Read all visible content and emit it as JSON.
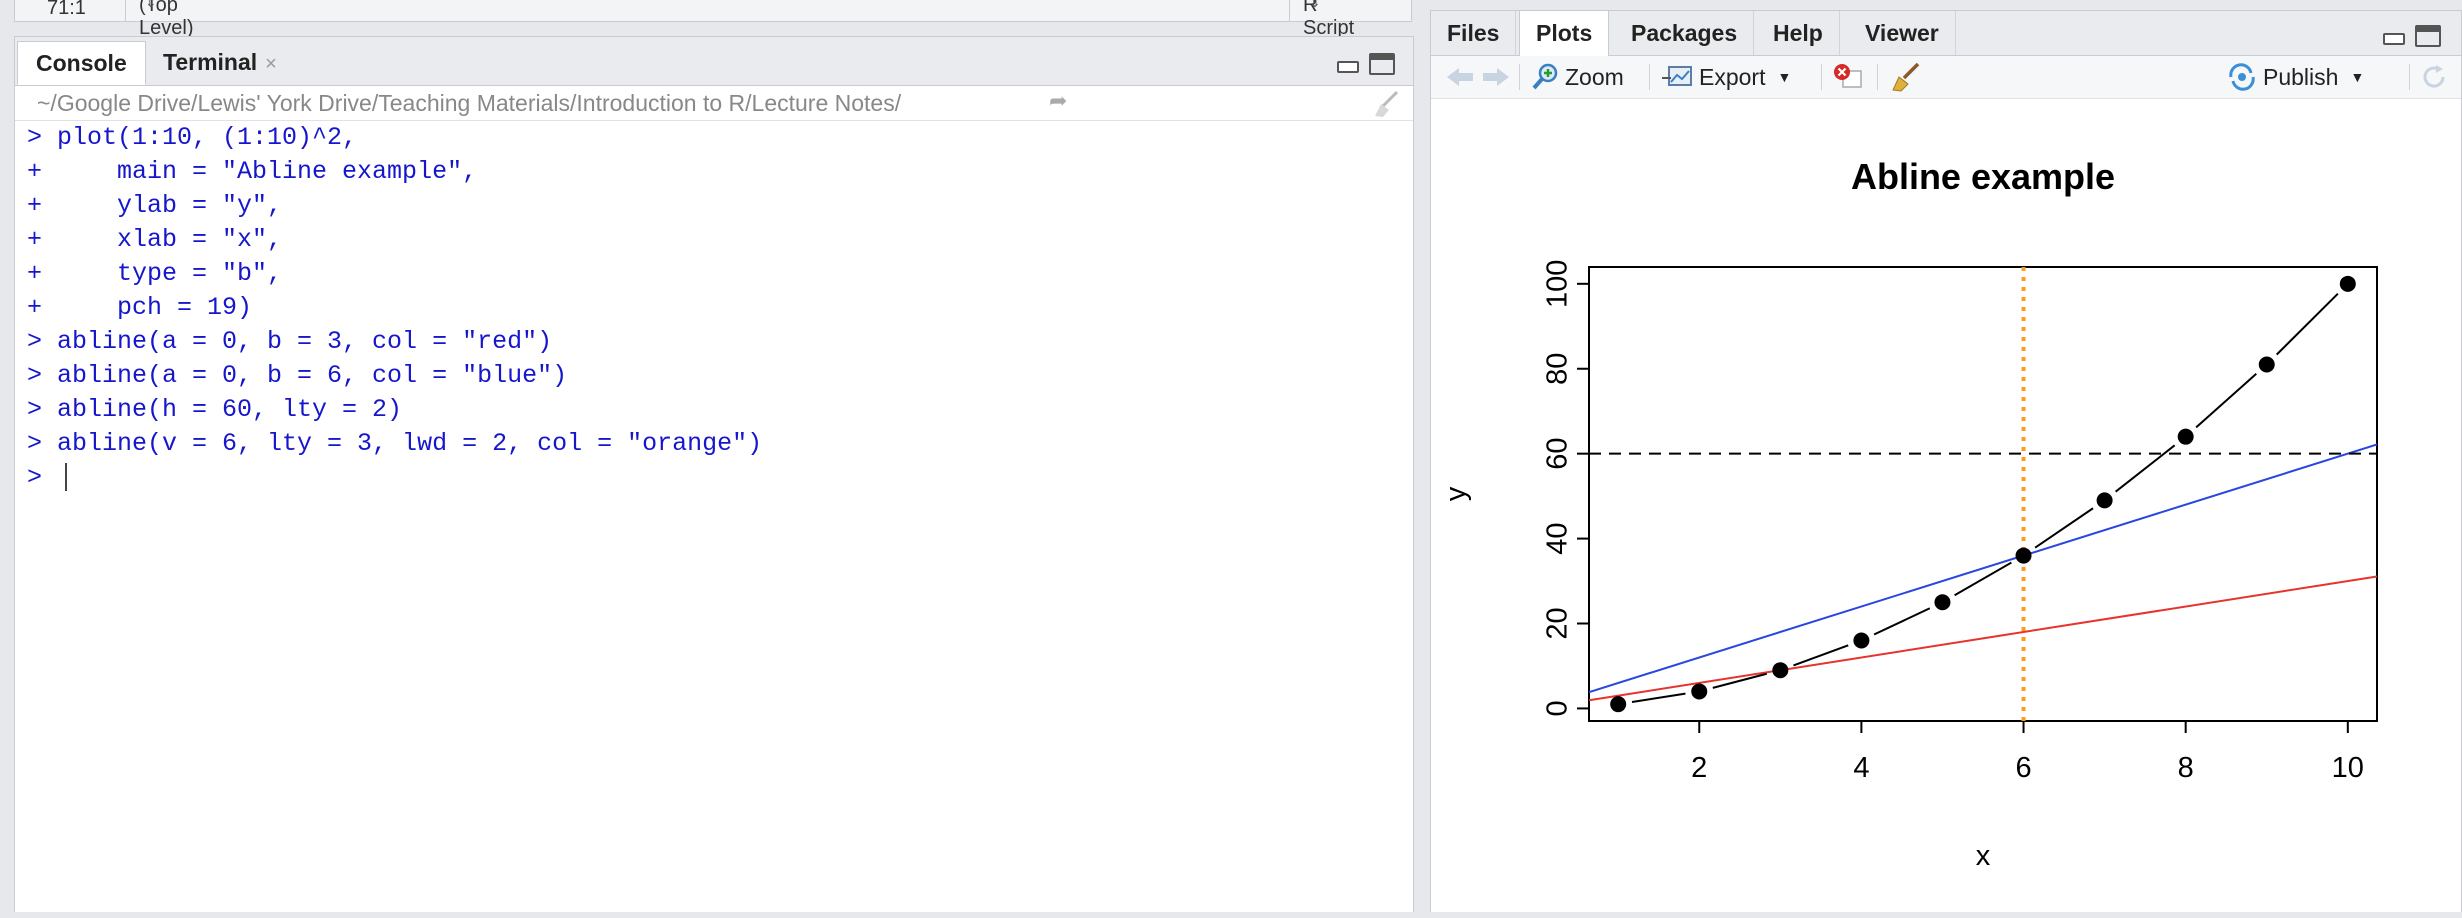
{
  "editor_status": {
    "position": "71:1",
    "scope": "(Top Level)",
    "file_type": "R Script"
  },
  "console_pane": {
    "tabs": [
      {
        "label": "Console",
        "active": true
      },
      {
        "label": "Terminal",
        "active": false,
        "close": "×"
      }
    ],
    "path": "~/Google Drive/Lewis' York Drive/Teaching Materials/Introduction to R/Lecture Notes/",
    "lines": [
      "> plot(1:10, (1:10)^2,",
      "+     main = \"Abline example\",",
      "+     ylab = \"y\",",
      "+     xlab = \"x\",",
      "+     type = \"b\",",
      "+     pch = 19)",
      "> abline(a = 0, b = 3, col = \"red\")",
      "> abline(a = 0, b = 6, col = \"blue\")",
      "> abline(h = 60, lty = 2)",
      "> abline(v = 6, lty = 3, lwd = 2, col = \"orange\")",
      "> "
    ]
  },
  "plots_pane": {
    "tabs": [
      {
        "label": "Files",
        "active": false
      },
      {
        "label": "Plots",
        "active": true
      },
      {
        "label": "Packages",
        "active": false
      },
      {
        "label": "Help",
        "active": false
      },
      {
        "label": "Viewer",
        "active": false
      }
    ],
    "toolbar": {
      "zoom_label": "Zoom",
      "export_label": "Export",
      "publish_label": "Publish"
    }
  },
  "chart_data": {
    "type": "line",
    "title": "Abline example",
    "xlabel": "x",
    "ylabel": "y",
    "xlim": [
      0.64,
      10.36
    ],
    "ylim": [
      -2.96,
      103.96
    ],
    "x_ticks": [
      2,
      4,
      6,
      8,
      10
    ],
    "y_ticks": [
      0,
      20,
      40,
      60,
      80,
      100
    ],
    "grid": false,
    "x": [
      1,
      2,
      3,
      4,
      5,
      6,
      7,
      8,
      9,
      10
    ],
    "y": [
      1,
      4,
      9,
      16,
      25,
      36,
      49,
      64,
      81,
      100
    ],
    "series_color": "#000000",
    "ablines": [
      {
        "a": 0,
        "b": 3,
        "color": "#e8322c",
        "style": "solid"
      },
      {
        "a": 0,
        "b": 6,
        "color": "#2a46e0",
        "style": "solid"
      },
      {
        "h": 60,
        "color": "#000000",
        "style": "dashed"
      },
      {
        "v": 6,
        "color": "#ff9a1e",
        "style": "dotted"
      }
    ]
  }
}
